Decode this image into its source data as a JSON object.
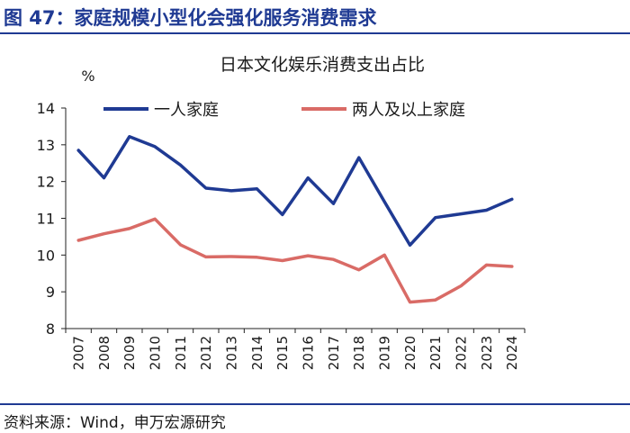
{
  "figure": {
    "title": "图 47：家庭规模小型化会强化服务消费需求",
    "source": "资料来源：Wind，申万宏源研究"
  },
  "chart_data": {
    "type": "line",
    "title": "日本文化娱乐消费支出占比",
    "ylabel": "%",
    "xlabel": "",
    "ylim": [
      8,
      14
    ],
    "yticks": [
      8,
      9,
      10,
      11,
      12,
      13,
      14
    ],
    "x": [
      "2007",
      "2008",
      "2009",
      "2010",
      "2011",
      "2012",
      "2013",
      "2014",
      "2015",
      "2016",
      "2017",
      "2018",
      "2019",
      "2020",
      "2021",
      "2022",
      "2023",
      "2024"
    ],
    "legend_position": "top",
    "grid": false,
    "series": [
      {
        "name": "一人家庭",
        "color": "#1f3a93",
        "values": [
          12.85,
          12.1,
          13.22,
          12.95,
          12.45,
          11.82,
          11.75,
          11.8,
          11.1,
          12.1,
          11.4,
          12.65,
          11.45,
          10.27,
          11.02,
          11.12,
          11.22,
          11.52
        ]
      },
      {
        "name": "两人及以上家庭",
        "color": "#d96b66",
        "values": [
          10.4,
          10.58,
          10.72,
          10.98,
          10.28,
          9.95,
          9.96,
          9.94,
          9.85,
          9.98,
          9.88,
          9.6,
          10.0,
          8.72,
          8.78,
          9.16,
          9.73,
          9.69
        ]
      }
    ]
  }
}
